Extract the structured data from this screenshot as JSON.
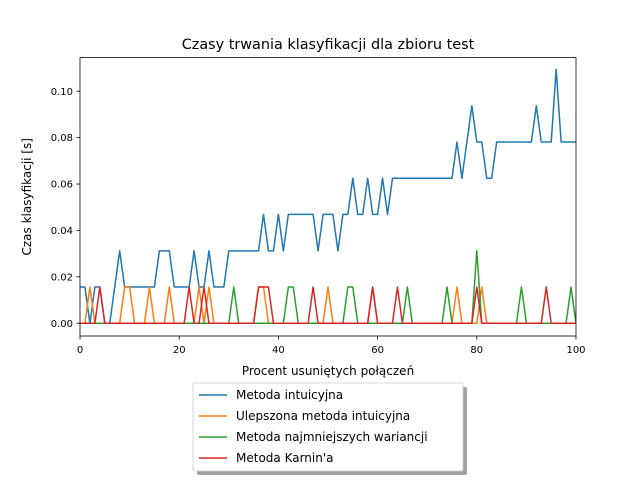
{
  "chart_data": {
    "type": "line",
    "title": "Czasy trwania klasyfikacji dla zbioru test",
    "xlabel": "Procent usuniętych połączeń",
    "ylabel": "Czas klasyfikacji [s]",
    "xlim": [
      0,
      100
    ],
    "ylim": [
      -0.0055,
      0.1145
    ],
    "xticks": [
      0,
      20,
      40,
      60,
      80,
      100
    ],
    "yticks": [
      0.0,
      0.02,
      0.04,
      0.06,
      0.08,
      0.1
    ],
    "xtick_labels": [
      "0",
      "20",
      "40",
      "60",
      "80",
      "100"
    ],
    "ytick_labels": [
      "0.00",
      "0.02",
      "0.04",
      "0.06",
      "0.08",
      "0.10"
    ],
    "grid": false,
    "legend_position": "below-center",
    "series": [
      {
        "name": "Metoda intuicyjna",
        "color": "#1f77b4",
        "x": [
          0,
          1,
          2,
          3,
          4,
          5,
          6,
          7,
          8,
          9,
          10,
          11,
          12,
          13,
          14,
          15,
          16,
          17,
          18,
          19,
          20,
          21,
          22,
          23,
          24,
          25,
          26,
          27,
          28,
          29,
          30,
          31,
          32,
          33,
          34,
          35,
          36,
          37,
          38,
          39,
          40,
          41,
          42,
          43,
          44,
          45,
          46,
          47,
          48,
          49,
          50,
          51,
          52,
          53,
          54,
          55,
          56,
          57,
          58,
          59,
          60,
          61,
          62,
          63,
          64,
          65,
          66,
          67,
          68,
          69,
          70,
          71,
          72,
          73,
          74,
          75,
          76,
          77,
          78,
          79,
          80,
          81,
          82,
          83,
          84,
          85,
          86,
          87,
          88,
          89,
          90,
          91,
          92,
          93,
          94,
          95,
          96,
          97,
          98,
          99,
          100
        ],
        "y": [
          0.0156,
          0.0156,
          0,
          0.0156,
          0.0156,
          0,
          0,
          0.0156,
          0.0312,
          0.0156,
          0.0156,
          0.0156,
          0.0156,
          0.0156,
          0.0156,
          0.0156,
          0.0312,
          0.0312,
          0.0312,
          0.0156,
          0.0156,
          0.0156,
          0.0156,
          0.0312,
          0.0156,
          0.0156,
          0.0312,
          0.0156,
          0.0156,
          0.0156,
          0.0312,
          0.0312,
          0.0312,
          0.0312,
          0.0312,
          0.0312,
          0.0312,
          0.0469,
          0.0312,
          0.0312,
          0.0469,
          0.0312,
          0.0469,
          0.0469,
          0.0469,
          0.0469,
          0.0469,
          0.0469,
          0.0312,
          0.0469,
          0.0469,
          0.0469,
          0.0312,
          0.0469,
          0.0469,
          0.0625,
          0.0469,
          0.0469,
          0.0625,
          0.0469,
          0.0469,
          0.0625,
          0.0469,
          0.0625,
          0.0625,
          0.0625,
          0.0625,
          0.0625,
          0.0625,
          0.0625,
          0.0625,
          0.0625,
          0.0625,
          0.0625,
          0.0625,
          0.0625,
          0.0781,
          0.0625,
          0.0781,
          0.0937,
          0.0781,
          0.0781,
          0.0625,
          0.0625,
          0.0781,
          0.0781,
          0.0781,
          0.0781,
          0.0781,
          0.0781,
          0.0781,
          0.0781,
          0.0937,
          0.0781,
          0.0781,
          0.0781,
          0.1094,
          0.0781,
          0.0781,
          0.0781,
          0.0781
        ]
      },
      {
        "name": "Ulepszona metoda intuicyjna",
        "color": "#ff7f0e",
        "x": [
          0,
          1,
          2,
          3,
          4,
          5,
          6,
          7,
          8,
          9,
          10,
          11,
          12,
          13,
          14,
          15,
          16,
          17,
          18,
          19,
          20,
          21,
          22,
          23,
          24,
          25,
          26,
          27,
          28,
          29,
          30,
          31,
          32,
          33,
          34,
          35,
          36,
          37,
          38,
          39,
          40,
          41,
          42,
          43,
          44,
          45,
          46,
          47,
          48,
          49,
          50,
          51,
          52,
          53,
          54,
          55,
          56,
          57,
          58,
          59,
          60,
          61,
          62,
          63,
          64,
          65,
          66,
          67,
          68,
          69,
          70,
          71,
          72,
          73,
          74,
          75,
          76,
          77,
          78,
          79,
          80,
          81,
          82,
          83,
          84,
          85,
          86,
          87,
          88,
          89,
          90,
          91,
          92,
          93,
          94,
          95,
          96,
          97,
          98,
          99,
          100
        ],
        "y": [
          0,
          0,
          0.0156,
          0,
          0,
          0,
          0,
          0,
          0,
          0.0156,
          0.0156,
          0,
          0,
          0,
          0.0156,
          0,
          0,
          0,
          0.0156,
          0,
          0,
          0,
          0,
          0,
          0.0156,
          0,
          0.0156,
          0,
          0,
          0,
          0,
          0,
          0,
          0,
          0,
          0,
          0.0156,
          0.0156,
          0,
          0,
          0,
          0,
          0,
          0,
          0,
          0,
          0,
          0,
          0,
          0,
          0.0156,
          0,
          0,
          0,
          0,
          0,
          0,
          0,
          0,
          0.0156,
          0,
          0,
          0,
          0,
          0,
          0,
          0,
          0,
          0,
          0,
          0,
          0,
          0,
          0,
          0,
          0,
          0.0156,
          0,
          0,
          0,
          0,
          0.0156,
          0,
          0,
          0,
          0,
          0,
          0,
          0,
          0,
          0,
          0,
          0,
          0,
          0,
          0,
          0,
          0,
          0,
          0,
          0
        ]
      },
      {
        "name": "Metoda najmniejszych wariancji",
        "color": "#2ca02c",
        "x": [
          0,
          1,
          2,
          3,
          4,
          5,
          6,
          7,
          8,
          9,
          10,
          11,
          12,
          13,
          14,
          15,
          16,
          17,
          18,
          19,
          20,
          21,
          22,
          23,
          24,
          25,
          26,
          27,
          28,
          29,
          30,
          31,
          32,
          33,
          34,
          35,
          36,
          37,
          38,
          39,
          40,
          41,
          42,
          43,
          44,
          45,
          46,
          47,
          48,
          49,
          50,
          51,
          52,
          53,
          54,
          55,
          56,
          57,
          58,
          59,
          60,
          61,
          62,
          63,
          64,
          65,
          66,
          67,
          68,
          69,
          70,
          71,
          72,
          73,
          74,
          75,
          76,
          77,
          78,
          79,
          80,
          81,
          82,
          83,
          84,
          85,
          86,
          87,
          88,
          89,
          90,
          91,
          92,
          93,
          94,
          95,
          96,
          97,
          98,
          99,
          100
        ],
        "y": [
          0,
          0,
          0,
          0,
          0,
          0,
          0,
          0,
          0,
          0,
          0,
          0,
          0,
          0,
          0,
          0,
          0,
          0,
          0,
          0,
          0,
          0,
          0,
          0,
          0,
          0,
          0,
          0,
          0,
          0,
          0,
          0.0156,
          0,
          0,
          0,
          0,
          0,
          0,
          0,
          0,
          0,
          0,
          0.0156,
          0.0156,
          0,
          0,
          0,
          0,
          0,
          0,
          0,
          0,
          0,
          0,
          0.0156,
          0.0156,
          0,
          0,
          0,
          0,
          0,
          0,
          0,
          0,
          0,
          0,
          0.0156,
          0,
          0,
          0,
          0,
          0,
          0,
          0,
          0.0156,
          0,
          0,
          0,
          0,
          0,
          0.0312,
          0,
          0,
          0,
          0,
          0,
          0,
          0,
          0,
          0.0156,
          0,
          0,
          0,
          0,
          0,
          0,
          0,
          0,
          0,
          0.0156,
          0
        ]
      },
      {
        "name": "Metoda Karnin'a",
        "color": "#d62728",
        "x": [
          0,
          1,
          2,
          3,
          4,
          5,
          6,
          7,
          8,
          9,
          10,
          11,
          12,
          13,
          14,
          15,
          16,
          17,
          18,
          19,
          20,
          21,
          22,
          23,
          24,
          25,
          26,
          27,
          28,
          29,
          30,
          31,
          32,
          33,
          34,
          35,
          36,
          37,
          38,
          39,
          40,
          41,
          42,
          43,
          44,
          45,
          46,
          47,
          48,
          49,
          50,
          51,
          52,
          53,
          54,
          55,
          56,
          57,
          58,
          59,
          60,
          61,
          62,
          63,
          64,
          65,
          66,
          67,
          68,
          69,
          70,
          71,
          72,
          73,
          74,
          75,
          76,
          77,
          78,
          79,
          80,
          81,
          82,
          83,
          84,
          85,
          86,
          87,
          88,
          89,
          90,
          91,
          92,
          93,
          94,
          95,
          96,
          97,
          98,
          99,
          100
        ],
        "y": [
          0,
          0,
          0,
          0,
          0.0156,
          0,
          0,
          0,
          0,
          0,
          0,
          0,
          0,
          0,
          0,
          0,
          0,
          0,
          0,
          0,
          0,
          0,
          0.0156,
          0,
          0,
          0.0156,
          0,
          0,
          0,
          0,
          0,
          0,
          0,
          0,
          0,
          0,
          0.0156,
          0.0156,
          0.0156,
          0,
          0,
          0,
          0,
          0,
          0,
          0,
          0,
          0.0156,
          0,
          0,
          0,
          0,
          0,
          0,
          0,
          0,
          0,
          0,
          0,
          0.0156,
          0,
          0,
          0,
          0,
          0.0156,
          0,
          0,
          0,
          0,
          0,
          0,
          0,
          0,
          0,
          0,
          0,
          0,
          0,
          0,
          0,
          0.0156,
          0,
          0,
          0,
          0,
          0,
          0,
          0,
          0,
          0,
          0,
          0,
          0,
          0,
          0.0156,
          0,
          0,
          0,
          0,
          0,
          0
        ]
      }
    ]
  }
}
